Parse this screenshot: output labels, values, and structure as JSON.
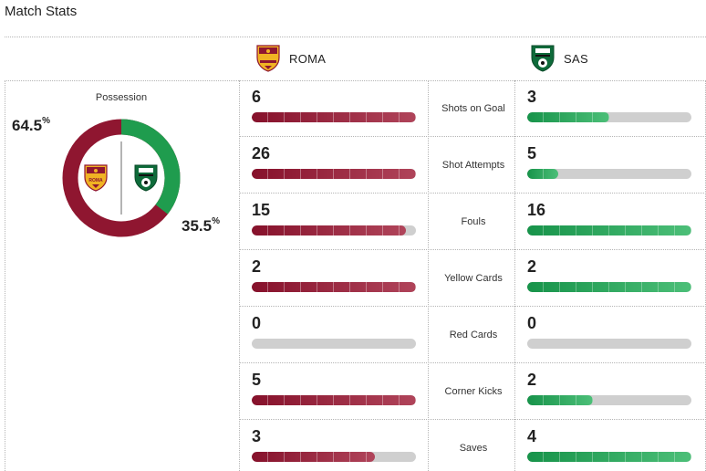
{
  "title": "Match Stats",
  "teams": {
    "home": {
      "name": "ROMA",
      "color": "#8f1630",
      "crest_text": "ROMA"
    },
    "away": {
      "name": "SAS",
      "color": "#1f9c4e"
    }
  },
  "possession": {
    "label": "Possession",
    "home_pct": "64.5",
    "away_pct": "35.5",
    "pct_symbol": "%",
    "home_value": 64.5,
    "away_value": 35.5
  },
  "stats": [
    {
      "label": "Shots on Goal",
      "home": "6",
      "away": "3",
      "home_fill": 1.0,
      "away_fill": 0.5
    },
    {
      "label": "Shot Attempts",
      "home": "26",
      "away": "5",
      "home_fill": 1.0,
      "away_fill": 0.19
    },
    {
      "label": "Fouls",
      "home": "15",
      "away": "16",
      "home_fill": 0.94,
      "away_fill": 1.0
    },
    {
      "label": "Yellow Cards",
      "home": "2",
      "away": "2",
      "home_fill": 1.0,
      "away_fill": 1.0
    },
    {
      "label": "Red Cards",
      "home": "0",
      "away": "0",
      "home_fill": 0,
      "away_fill": 0
    },
    {
      "label": "Corner Kicks",
      "home": "5",
      "away": "2",
      "home_fill": 1.0,
      "away_fill": 0.4
    },
    {
      "label": "Saves",
      "home": "3",
      "away": "4",
      "home_fill": 0.75,
      "away_fill": 1.0
    }
  ]
}
